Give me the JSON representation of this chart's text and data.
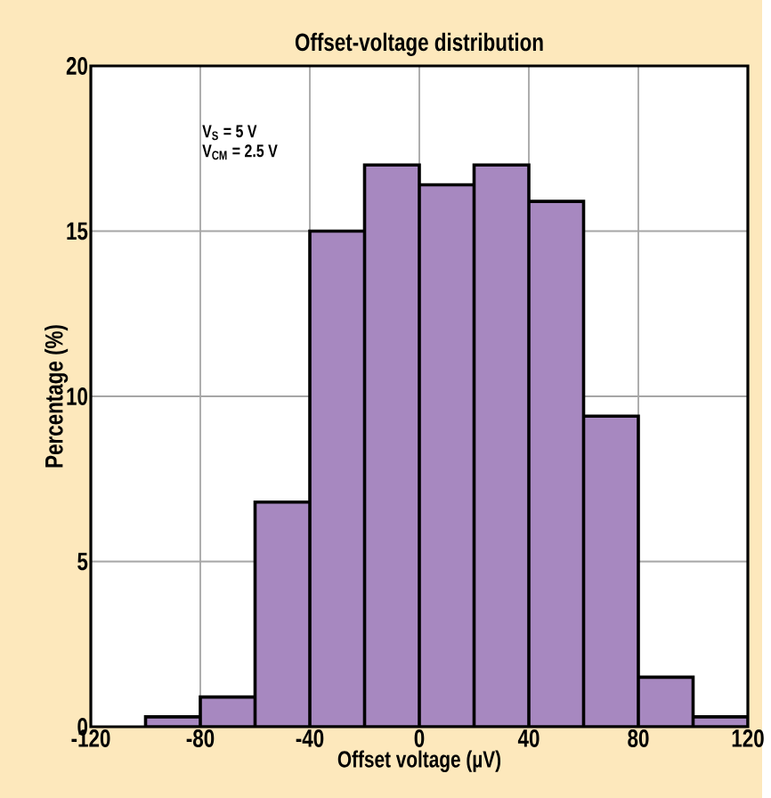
{
  "chart_data": {
    "type": "histogram",
    "title": "Offset-voltage distribution",
    "xlabel": "Offset voltage (µV)",
    "ylabel": "Percentage (%)",
    "annotations": [
      "V$_{S}$ = 5 V",
      "V$_{CM}$ = 2.5 V"
    ],
    "bins": [
      -100,
      -80,
      -60,
      -40,
      -20,
      0,
      20,
      40,
      60,
      80,
      100,
      120
    ],
    "values": [
      0.3,
      0.9,
      6.8,
      15.0,
      17.0,
      16.4,
      17.0,
      15.9,
      9.4,
      1.5,
      0.3
    ],
    "color": "#a788c0",
    "xlim": [
      -120,
      120
    ],
    "ylim": [
      0,
      20
    ],
    "xticks": [
      -120,
      -80,
      -40,
      0,
      40,
      80,
      120
    ],
    "yticks": [
      0,
      5,
      10,
      15,
      20
    ],
    "grid": true
  }
}
